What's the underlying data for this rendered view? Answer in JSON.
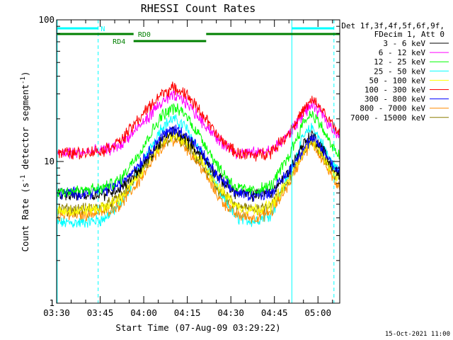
{
  "chart_data": {
    "type": "line",
    "title": "RHESSI Count Rates",
    "xlabel": "Start Time (07-Aug-09 03:29:22)",
    "ylabel": "Count Rate (s",
    "ylabel_sup": "-1",
    "ylabel_rest": " detector segment",
    "ylabel_sup2": "-1",
    "ylabel_end": ")",
    "yscale": "log",
    "ylim": [
      1,
      100
    ],
    "xlim_min": [
      210.0,
      307.5
    ],
    "xticks": [
      {
        "label": "03:30",
        "v": 210
      },
      {
        "label": "03:45",
        "v": 225
      },
      {
        "label": "04:00",
        "v": 240
      },
      {
        "label": "04:15",
        "v": 255
      },
      {
        "label": "04:30",
        "v": 270
      },
      {
        "label": "04:45",
        "v": 285
      },
      {
        "label": "05:00",
        "v": 300
      }
    ],
    "yticks": [
      {
        "label": "1",
        "v": 1
      },
      {
        "label": "10",
        "v": 10
      },
      {
        "label": "100",
        "v": 100
      }
    ],
    "legend_header": [
      "Det 1f,3f,4f,5f,6f,9f,",
      "FDecim 1, Att 0"
    ],
    "legend_position": "right",
    "series": [
      {
        "name": "3 - 6 keV",
        "color": "#000000",
        "points": [
          [
            210,
            5.8
          ],
          [
            218,
            5.8
          ],
          [
            226,
            5.9
          ],
          [
            232,
            6.5
          ],
          [
            240,
            9.5
          ],
          [
            246,
            14.0
          ],
          [
            250,
            16.5
          ],
          [
            254,
            15.0
          ],
          [
            260,
            11.0
          ],
          [
            266,
            7.6
          ],
          [
            272,
            6.0
          ],
          [
            278,
            5.8
          ],
          [
            284,
            6.0
          ],
          [
            290,
            8.5
          ],
          [
            295,
            13.5
          ],
          [
            298,
            15.5
          ],
          [
            301,
            13.0
          ],
          [
            305,
            9.0
          ],
          [
            307.5,
            8.0
          ]
        ]
      },
      {
        "name": "6 - 12 keV",
        "color": "#ff00ff",
        "points": [
          [
            210,
            11.5
          ],
          [
            218,
            11.5
          ],
          [
            226,
            12.0
          ],
          [
            232,
            13.0
          ],
          [
            240,
            19.0
          ],
          [
            246,
            26.0
          ],
          [
            250,
            29.0
          ],
          [
            254,
            27.0
          ],
          [
            260,
            19.5
          ],
          [
            266,
            14.0
          ],
          [
            272,
            11.5
          ],
          [
            278,
            11.5
          ],
          [
            284,
            12.0
          ],
          [
            290,
            15.5
          ],
          [
            295,
            22.0
          ],
          [
            298,
            25.0
          ],
          [
            301,
            22.0
          ],
          [
            305,
            17.0
          ],
          [
            307.5,
            15.5
          ]
        ]
      },
      {
        "name": "12 - 25 keV",
        "color": "#00ff00",
        "points": [
          [
            210,
            6.2
          ],
          [
            218,
            6.2
          ],
          [
            226,
            6.5
          ],
          [
            232,
            7.5
          ],
          [
            240,
            13.0
          ],
          [
            246,
            21.0
          ],
          [
            250,
            24.0
          ],
          [
            254,
            22.0
          ],
          [
            260,
            14.5
          ],
          [
            266,
            9.0
          ],
          [
            272,
            6.5
          ],
          [
            278,
            6.2
          ],
          [
            284,
            6.8
          ],
          [
            290,
            11.0
          ],
          [
            295,
            19.0
          ],
          [
            298,
            22.0
          ],
          [
            301,
            18.0
          ],
          [
            305,
            12.5
          ],
          [
            307.5,
            11.0
          ]
        ]
      },
      {
        "name": "25 - 50 keV",
        "color": "#00ffff",
        "points": [
          [
            210,
            3.7
          ],
          [
            218,
            3.7
          ],
          [
            226,
            3.9
          ],
          [
            232,
            5.0
          ],
          [
            240,
            10.0
          ],
          [
            246,
            17.5
          ],
          [
            250,
            20.0
          ],
          [
            254,
            18.0
          ],
          [
            260,
            11.5
          ],
          [
            266,
            6.0
          ],
          [
            272,
            4.0
          ],
          [
            278,
            3.8
          ],
          [
            284,
            4.3
          ],
          [
            290,
            8.0
          ],
          [
            295,
            15.0
          ],
          [
            298,
            17.5
          ],
          [
            301,
            14.0
          ],
          [
            305,
            9.5
          ],
          [
            307.5,
            8.5
          ]
        ]
      },
      {
        "name": "50 - 100 keV",
        "color": "#ffff00",
        "points": [
          [
            210,
            4.5
          ],
          [
            218,
            4.5
          ],
          [
            226,
            4.7
          ],
          [
            232,
            5.5
          ],
          [
            240,
            9.0
          ],
          [
            246,
            13.5
          ],
          [
            250,
            15.5
          ],
          [
            254,
            14.0
          ],
          [
            260,
            10.0
          ],
          [
            266,
            6.5
          ],
          [
            272,
            4.8
          ],
          [
            278,
            4.6
          ],
          [
            284,
            4.9
          ],
          [
            290,
            7.5
          ],
          [
            295,
            12.0
          ],
          [
            298,
            14.0
          ],
          [
            301,
            12.0
          ],
          [
            305,
            8.5
          ],
          [
            307.5,
            7.5
          ]
        ]
      },
      {
        "name": "100 - 300 keV",
        "color": "#ff0000",
        "points": [
          [
            210,
            11.5
          ],
          [
            218,
            11.5
          ],
          [
            226,
            12.0
          ],
          [
            232,
            14.0
          ],
          [
            240,
            22.0
          ],
          [
            246,
            30.0
          ],
          [
            250,
            33.0
          ],
          [
            254,
            31.0
          ],
          [
            260,
            22.0
          ],
          [
            266,
            14.5
          ],
          [
            272,
            11.5
          ],
          [
            278,
            11.0
          ],
          [
            284,
            11.8
          ],
          [
            290,
            16.0
          ],
          [
            295,
            23.0
          ],
          [
            298,
            27.0
          ],
          [
            301,
            24.0
          ],
          [
            305,
            18.0
          ],
          [
            307.5,
            16.0
          ]
        ]
      },
      {
        "name": "300 - 800 keV",
        "color": "#0000ff",
        "points": [
          [
            210,
            6.0
          ],
          [
            218,
            6.0
          ],
          [
            226,
            6.2
          ],
          [
            232,
            7.0
          ],
          [
            240,
            10.5
          ],
          [
            246,
            15.0
          ],
          [
            250,
            17.0
          ],
          [
            254,
            16.0
          ],
          [
            260,
            11.5
          ],
          [
            266,
            7.5
          ],
          [
            272,
            6.0
          ],
          [
            278,
            5.8
          ],
          [
            284,
            6.1
          ],
          [
            290,
            8.5
          ],
          [
            295,
            12.5
          ],
          [
            298,
            14.5
          ],
          [
            301,
            12.5
          ],
          [
            305,
            9.5
          ],
          [
            307.5,
            8.5
          ]
        ]
      },
      {
        "name": "800 - 7000 keV",
        "color": "#ff8c00",
        "points": [
          [
            210,
            4.2
          ],
          [
            218,
            4.2
          ],
          [
            226,
            4.4
          ],
          [
            232,
            5.0
          ],
          [
            240,
            8.0
          ],
          [
            246,
            12.5
          ],
          [
            250,
            14.5
          ],
          [
            254,
            13.0
          ],
          [
            260,
            9.0
          ],
          [
            266,
            5.5
          ],
          [
            272,
            4.2
          ],
          [
            278,
            4.0
          ],
          [
            284,
            4.4
          ],
          [
            290,
            7.0
          ],
          [
            295,
            11.5
          ],
          [
            298,
            13.5
          ],
          [
            301,
            11.0
          ],
          [
            305,
            7.5
          ],
          [
            307.5,
            6.8
          ]
        ]
      },
      {
        "name": "7000 - 15000 keV",
        "color": "#8b7d00",
        "points": [
          [
            210,
            4.6
          ],
          [
            218,
            4.6
          ],
          [
            226,
            4.8
          ],
          [
            232,
            5.6
          ],
          [
            240,
            9.0
          ],
          [
            246,
            13.0
          ],
          [
            250,
            15.0
          ],
          [
            254,
            13.5
          ],
          [
            260,
            9.5
          ],
          [
            266,
            6.2
          ],
          [
            272,
            4.8
          ],
          [
            278,
            4.6
          ],
          [
            284,
            5.0
          ],
          [
            290,
            7.5
          ],
          [
            295,
            12.0
          ],
          [
            298,
            14.0
          ],
          [
            301,
            12.0
          ],
          [
            305,
            8.5
          ],
          [
            307.5,
            7.5
          ]
        ]
      }
    ],
    "vlines": [
      {
        "v": 210.2,
        "style": "solid",
        "color": "#00ffff"
      },
      {
        "v": 224.3,
        "style": "dashed",
        "color": "#00ffff"
      },
      {
        "v": 291.0,
        "style": "solid",
        "color": "#00ffff"
      },
      {
        "v": 305.5,
        "style": "dashed",
        "color": "#00ffff"
      }
    ],
    "annotations": [
      {
        "label": "N",
        "color": "#00ffff",
        "row": "top",
        "segments": [
          [
            210.2,
            224.3
          ],
          [
            291.0,
            305.5
          ]
        ],
        "label_at": 225.2
      },
      {
        "label": "RD0",
        "color": "#008000",
        "row": "mid",
        "segments": [
          [
            210.2,
            236.5
          ],
          [
            261.5,
            307.5
          ]
        ],
        "label_at": 238.0
      },
      {
        "label": "RD4",
        "color": "#008000",
        "row": "low",
        "segments": [
          [
            236.5,
            261.5
          ]
        ],
        "label_at": 229.3
      }
    ],
    "timestamp": "15-Oct-2021 11:00"
  }
}
